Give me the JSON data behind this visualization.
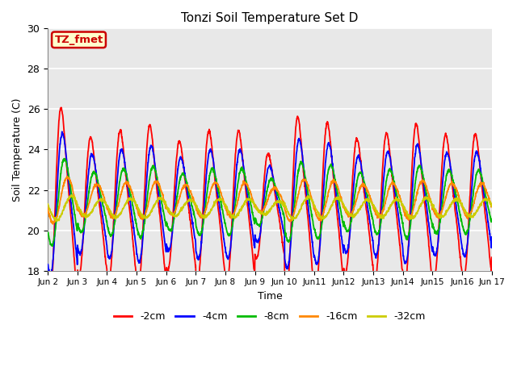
{
  "title": "Tonzi Soil Temperature Set D",
  "xlabel": "Time",
  "ylabel": "Soil Temperature (C)",
  "ylim": [
    18,
    30
  ],
  "xlim": [
    0,
    15
  ],
  "x_tick_labels": [
    "Jun 2",
    "Jun 3",
    "Jun 4",
    "Jun 5",
    "Jun 6",
    "Jun 7",
    "Jun 8",
    "Jun 9",
    "Jun 10",
    "Jun11",
    "Jun12",
    "Jun13",
    "Jun14",
    "Jun15",
    "Jun16",
    "Jun 17"
  ],
  "x_tick_positions": [
    0,
    1,
    2,
    3,
    4,
    5,
    6,
    7,
    8,
    9,
    10,
    11,
    12,
    13,
    14,
    15
  ],
  "yticks": [
    18,
    20,
    22,
    24,
    26,
    28,
    30
  ],
  "bg_color": "#e8e8e8",
  "line_colors": [
    "#ff0000",
    "#0000ff",
    "#00bb00",
    "#ff8800",
    "#cccc00"
  ],
  "line_labels": [
    "-2cm",
    "-4cm",
    "-8cm",
    "-16cm",
    "-32cm"
  ],
  "label_box_text": "TZ_fmet",
  "label_box_bg": "#ffffcc",
  "label_box_edge": "#cc0000",
  "label_box_text_color": "#cc0000",
  "n_points": 2000,
  "base_temps": [
    21.2,
    21.3,
    21.4,
    21.5,
    21.1
  ],
  "amplitudes": [
    4.2,
    3.0,
    1.8,
    0.9,
    0.45
  ],
  "phase_lags": [
    0.0,
    0.25,
    0.6,
    1.1,
    1.9
  ],
  "peak_sharpness": [
    3.5,
    2.5,
    1.8,
    1.2,
    1.0
  ]
}
